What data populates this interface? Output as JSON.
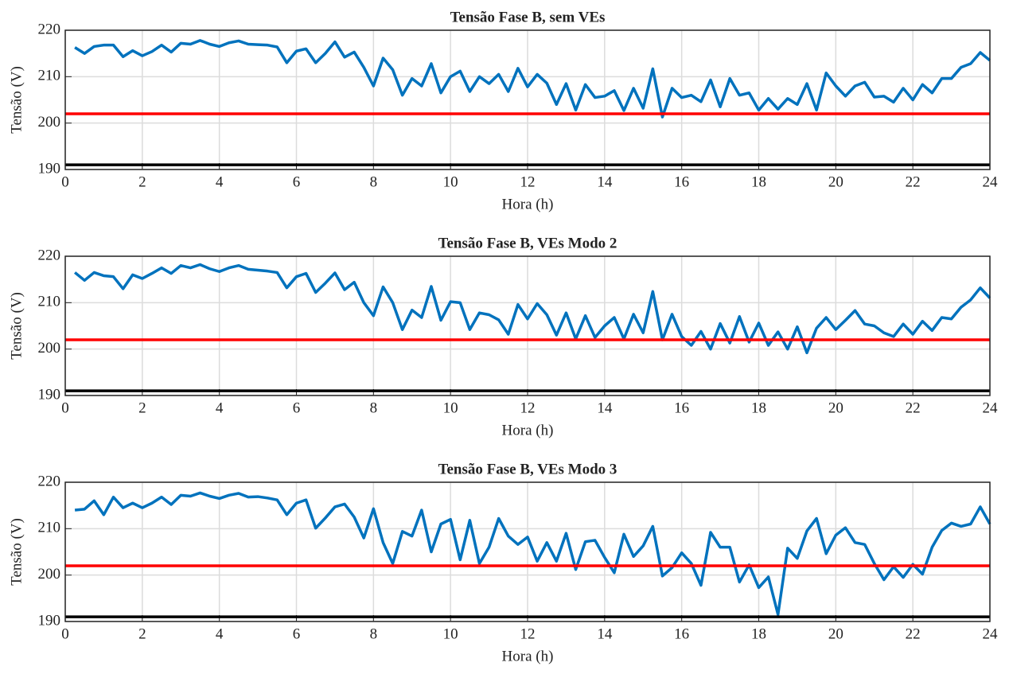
{
  "chart_data": [
    {
      "type": "line",
      "title": "Tensão Fase B, sem VEs",
      "xlabel": "Hora (h)",
      "ylabel": "Tensão (V)",
      "xlim": [
        0,
        24
      ],
      "xticks": [
        0,
        2,
        4,
        6,
        8,
        10,
        12,
        14,
        16,
        18,
        20,
        22,
        24
      ],
      "ylim": [
        190,
        220
      ],
      "yticks": [
        190,
        200,
        210,
        220
      ],
      "grid": true,
      "x": [
        0.25,
        0.5,
        0.75,
        1,
        1.25,
        1.5,
        1.75,
        2,
        2.25,
        2.5,
        2.75,
        3,
        3.25,
        3.5,
        3.75,
        4,
        4.25,
        4.5,
        4.75,
        5,
        5.25,
        5.5,
        5.75,
        6,
        6.25,
        6.5,
        6.75,
        7,
        7.25,
        7.5,
        7.75,
        8,
        8.25,
        8.5,
        8.75,
        9,
        9.25,
        9.5,
        9.75,
        10,
        10.25,
        10.5,
        10.75,
        11,
        11.25,
        11.5,
        11.75,
        12,
        12.25,
        12.5,
        12.75,
        13,
        13.25,
        13.5,
        13.75,
        14,
        14.25,
        14.5,
        14.75,
        15,
        15.25,
        15.5,
        15.75,
        16,
        16.25,
        16.5,
        16.75,
        17,
        17.25,
        17.5,
        17.75,
        18,
        18.25,
        18.5,
        18.75,
        19,
        19.25,
        19.5,
        19.75,
        20,
        20.25,
        20.5,
        20.75,
        21,
        21.25,
        21.5,
        21.75,
        22,
        22.25,
        22.5,
        22.75,
        23,
        23.25,
        23.5,
        23.75,
        24
      ],
      "series": [
        {
          "color": "#0072bd",
          "values": [
            216.3,
            215,
            216.5,
            216.8,
            216.8,
            214.3,
            215.6,
            214.5,
            215.4,
            216.8,
            215.3,
            217.2,
            217,
            217.8,
            217,
            216.5,
            217.3,
            217.7,
            217,
            216.9,
            216.8,
            216.4,
            213,
            215.5,
            216,
            213,
            215,
            217.5,
            214.2,
            215.3,
            212,
            208,
            214,
            211.5,
            206,
            209.6,
            208,
            212.8,
            206.5,
            210,
            211.2,
            206.8,
            210,
            208.5,
            210.5,
            206.8,
            211.8,
            207.8,
            210.5,
            208.6,
            204,
            208.5,
            202.8,
            208.3,
            205.5,
            205.8,
            207,
            202.7,
            207.5,
            203.2,
            211.7,
            201.3,
            207.5,
            205.5,
            206,
            204.6,
            209.3,
            203.5,
            209.6,
            206,
            206.5,
            202.8,
            205.3,
            203,
            205.3,
            204,
            208.5,
            202.8,
            210.8,
            208,
            205.8,
            208,
            208.8,
            205.6,
            205.8,
            204.5,
            207.5,
            205,
            208.3,
            206.5,
            209.6,
            209.6,
            212,
            212.8,
            215.2,
            213.5
          ]
        },
        {
          "color": "#ff0000",
          "x": [
            0,
            24
          ],
          "values": [
            202,
            202
          ]
        },
        {
          "color": "#000000",
          "x": [
            0,
            24
          ],
          "values": [
            191,
            191
          ]
        }
      ]
    },
    {
      "type": "line",
      "title": "Tensão Fase B, VEs Modo 2",
      "xlabel": "Hora (h)",
      "ylabel": "Tensão (V)",
      "xlim": [
        0,
        24
      ],
      "xticks": [
        0,
        2,
        4,
        6,
        8,
        10,
        12,
        14,
        16,
        18,
        20,
        22,
        24
      ],
      "ylim": [
        190,
        220
      ],
      "yticks": [
        190,
        200,
        210,
        220
      ],
      "grid": true,
      "x": [
        0.25,
        0.5,
        0.75,
        1,
        1.25,
        1.5,
        1.75,
        2,
        2.25,
        2.5,
        2.75,
        3,
        3.25,
        3.5,
        3.75,
        4,
        4.25,
        4.5,
        4.75,
        5,
        5.25,
        5.5,
        5.75,
        6,
        6.25,
        6.5,
        6.75,
        7,
        7.25,
        7.5,
        7.75,
        8,
        8.25,
        8.5,
        8.75,
        9,
        9.25,
        9.5,
        9.75,
        10,
        10.25,
        10.5,
        10.75,
        11,
        11.25,
        11.5,
        11.75,
        12,
        12.25,
        12.5,
        12.75,
        13,
        13.25,
        13.5,
        13.75,
        14,
        14.25,
        14.5,
        14.75,
        15,
        15.25,
        15.5,
        15.75,
        16,
        16.25,
        16.5,
        16.75,
        17,
        17.25,
        17.5,
        17.75,
        18,
        18.25,
        18.5,
        18.75,
        19,
        19.25,
        19.5,
        19.75,
        20,
        20.25,
        20.5,
        20.75,
        21,
        21.25,
        21.5,
        21.75,
        22,
        22.25,
        22.5,
        22.75,
        23,
        23.25,
        23.5,
        23.75,
        24
      ],
      "series": [
        {
          "color": "#0072bd",
          "values": [
            216.5,
            214.8,
            216.5,
            215.8,
            215.6,
            213,
            216,
            215.2,
            216.3,
            217.5,
            216.3,
            218,
            217.5,
            218.2,
            217.3,
            216.7,
            217.5,
            218,
            217.2,
            217,
            216.8,
            216.5,
            213.2,
            215.6,
            216.3,
            212.2,
            214.2,
            216.4,
            212.8,
            214.4,
            210,
            207.2,
            213.4,
            210,
            204.2,
            208.4,
            206.8,
            213.5,
            206.2,
            210.2,
            210,
            204.2,
            207.8,
            207.4,
            206.3,
            203.2,
            209.6,
            206.5,
            209.8,
            207.4,
            203,
            207.8,
            202.2,
            207.2,
            202.5,
            205,
            206.8,
            202.2,
            207.5,
            203.5,
            212.4,
            202,
            207.5,
            202.7,
            200.8,
            203.8,
            200,
            205.5,
            201.3,
            207,
            201.5,
            205.6,
            200.8,
            203.7,
            200,
            204.8,
            199.2,
            204.5,
            206.8,
            204.2,
            206.2,
            208.3,
            205.4,
            205,
            203.5,
            202.7,
            205.4,
            203.2,
            206,
            204,
            206.8,
            206.5,
            209,
            210.6,
            213.2,
            211
          ]
        },
        {
          "color": "#ff0000",
          "x": [
            0,
            24
          ],
          "values": [
            202,
            202
          ]
        },
        {
          "color": "#000000",
          "x": [
            0,
            24
          ],
          "values": [
            191,
            191
          ]
        }
      ]
    },
    {
      "type": "line",
      "title": "Tensão Fase B, VEs Modo 3",
      "xlabel": "Hora (h)",
      "ylabel": "Tensão (V)",
      "xlim": [
        0,
        24
      ],
      "xticks": [
        0,
        2,
        4,
        6,
        8,
        10,
        12,
        14,
        16,
        18,
        20,
        22,
        24
      ],
      "ylim": [
        190,
        220
      ],
      "yticks": [
        190,
        200,
        210,
        220
      ],
      "grid": true,
      "x": [
        0.25,
        0.5,
        0.75,
        1,
        1.25,
        1.5,
        1.75,
        2,
        2.25,
        2.5,
        2.75,
        3,
        3.25,
        3.5,
        3.75,
        4,
        4.25,
        4.5,
        4.75,
        5,
        5.25,
        5.5,
        5.75,
        6,
        6.25,
        6.5,
        6.75,
        7,
        7.25,
        7.5,
        7.75,
        8,
        8.25,
        8.5,
        8.75,
        9,
        9.25,
        9.5,
        9.75,
        10,
        10.25,
        10.5,
        10.75,
        11,
        11.25,
        11.5,
        11.75,
        12,
        12.25,
        12.5,
        12.75,
        13,
        13.25,
        13.5,
        13.75,
        14,
        14.25,
        14.5,
        14.75,
        15,
        15.25,
        15.5,
        15.75,
        16,
        16.25,
        16.5,
        16.75,
        17,
        17.25,
        17.5,
        17.75,
        18,
        18.25,
        18.5,
        18.75,
        19,
        19.25,
        19.5,
        19.75,
        20,
        20.25,
        20.5,
        20.75,
        21,
        21.25,
        21.5,
        21.75,
        22,
        22.25,
        22.5,
        22.75,
        23,
        23.25,
        23.5,
        23.75,
        24
      ],
      "series": [
        {
          "color": "#0072bd",
          "values": [
            214,
            214.2,
            216,
            213,
            216.8,
            214.5,
            215.5,
            214.5,
            215.5,
            216.8,
            215.2,
            217.2,
            217,
            217.7,
            217,
            216.5,
            217.2,
            217.6,
            216.8,
            216.9,
            216.6,
            216.2,
            213,
            215.5,
            216.2,
            210.1,
            212.3,
            214.7,
            215.3,
            212.5,
            208,
            214.3,
            207,
            202.5,
            209.4,
            208.4,
            214,
            205,
            211,
            212,
            203.3,
            211.8,
            202.5,
            206,
            212.2,
            208.4,
            206.6,
            208.2,
            203,
            207,
            203,
            209,
            201.2,
            207.2,
            207.5,
            203.8,
            200.5,
            208.8,
            204,
            206.3,
            210.5,
            199.8,
            201.6,
            204.8,
            202.5,
            197.8,
            209.2,
            206,
            206,
            198.5,
            202.2,
            197.3,
            199.6,
            191.5,
            205.8,
            203.6,
            209.5,
            212.2,
            204.6,
            208.6,
            210.2,
            207,
            206.6,
            202.5,
            199,
            201.8,
            199.5,
            202.3,
            200.2,
            206,
            209.6,
            211.2,
            210.5,
            211,
            214.7,
            211
          ]
        },
        {
          "color": "#ff0000",
          "x": [
            0,
            24
          ],
          "values": [
            202,
            202
          ]
        },
        {
          "color": "#000000",
          "x": [
            0,
            24
          ],
          "values": [
            191,
            191
          ]
        }
      ]
    }
  ]
}
